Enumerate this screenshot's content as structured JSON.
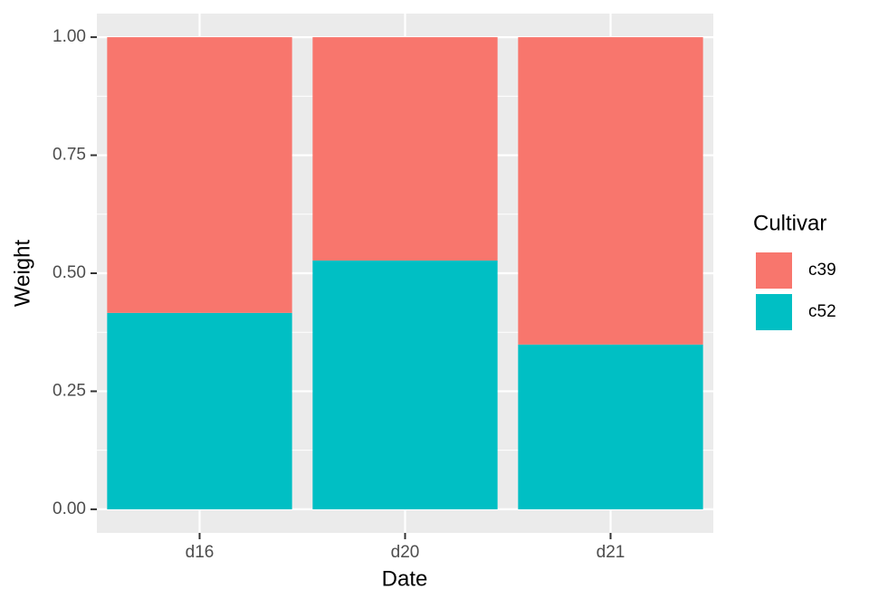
{
  "chart_data": {
    "type": "stacked_bar",
    "x_label": "Date",
    "y_label": "Weight",
    "categories": [
      "d16",
      "d20",
      "d21"
    ],
    "legend_title": "Cultivar",
    "series": [
      {
        "name": "c39",
        "color": "#f8766d",
        "values": [
          0.584,
          0.473,
          0.651
        ]
      },
      {
        "name": "c52",
        "color": "#00bfc4",
        "values": [
          0.416,
          0.527,
          0.349
        ]
      }
    ],
    "ylim": [
      -0.05,
      1.05
    ],
    "yticks": [
      {
        "value": 0,
        "label": "0.00"
      },
      0.25,
      {
        "value": 0.5,
        "label": "0.50"
      },
      0.75,
      {
        "value": 1,
        "label": "1.00"
      }
    ],
    "grid": true,
    "legend_position": "right"
  }
}
